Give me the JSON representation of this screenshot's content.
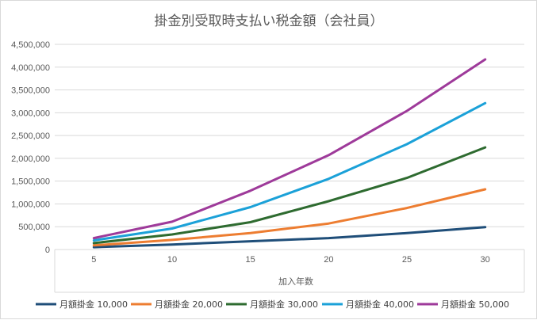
{
  "chart_data": {
    "type": "line",
    "title": "掛金別受取時支払い税金額（会社員）",
    "xlabel": "加入年数",
    "ylabel": "",
    "categories": [
      "5",
      "10",
      "15",
      "20",
      "25",
      "30"
    ],
    "ylim": [
      0,
      4500000
    ],
    "yticks": [
      0,
      500000,
      1000000,
      1500000,
      2000000,
      2500000,
      3000000,
      3500000,
      4000000,
      4500000
    ],
    "ytick_labels": [
      "0",
      "500,000",
      "1,000,000",
      "1,500,000",
      "2,000,000",
      "2,500,000",
      "3,000,000",
      "3,500,000",
      "4,000,000",
      "4,500,000"
    ],
    "grid": true,
    "legend": "bottom",
    "series": [
      {
        "name": "月額掛金 10,000",
        "color": "#1f4e79",
        "values": [
          50000,
          110000,
          180000,
          250000,
          360000,
          490000
        ]
      },
      {
        "name": "月額掛金 20,000",
        "color": "#ed7d31",
        "values": [
          90000,
          210000,
          360000,
          570000,
          910000,
          1320000
        ]
      },
      {
        "name": "月額掛金 30,000",
        "color": "#2e6b30",
        "values": [
          140000,
          330000,
          600000,
          1060000,
          1570000,
          2240000
        ]
      },
      {
        "name": "月額掛金 40,000",
        "color": "#1ba1d8",
        "values": [
          200000,
          460000,
          930000,
          1550000,
          2310000,
          3210000
        ]
      },
      {
        "name": "月額掛金 50,000",
        "color": "#9e3a9a",
        "values": [
          250000,
          610000,
          1290000,
          2070000,
          3040000,
          4170000
        ]
      }
    ]
  }
}
